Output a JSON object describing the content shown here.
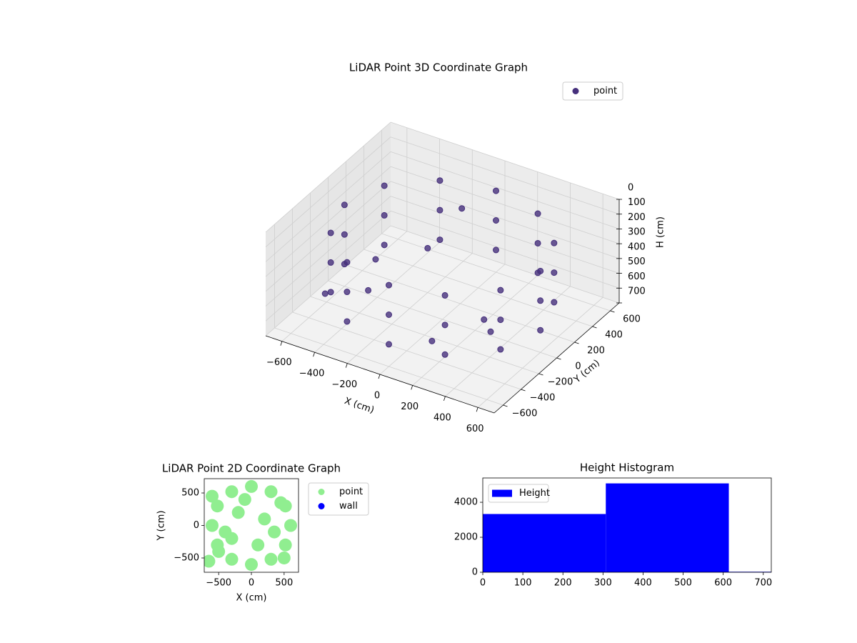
{
  "chart_data": [
    {
      "type": "scatter3d",
      "title": "LiDAR Point 3D Coordinate Graph",
      "xlabel": "X (cm)",
      "ylabel": "Y (cm)",
      "zlabel": "H (cm)",
      "xlim": [
        -700,
        700
      ],
      "ylim": [
        -700,
        700
      ],
      "zlim": [
        0,
        700
      ],
      "zaxis_inverted": true,
      "grid": true,
      "legend": "upper right",
      "xticks": [
        {
          "value": -600,
          "label": "−600"
        },
        {
          "value": -400,
          "label": "−400"
        },
        {
          "value": -200,
          "label": "−200"
        },
        0,
        200,
        400,
        600
      ],
      "yticks": [
        {
          "value": -600,
          "label": "−600"
        },
        {
          "value": -400,
          "label": "−400"
        },
        {
          "value": -200,
          "label": "−200"
        },
        0,
        200,
        400,
        600
      ],
      "zticks": [
        0,
        100,
        200,
        300,
        400,
        500,
        600,
        700
      ],
      "series": [
        {
          "name": "point",
          "color": "#46307c",
          "x": [
            -300,
            -300,
            -300,
            0,
            0,
            0,
            300,
            300,
            300,
            520,
            520,
            520,
            600,
            600,
            600,
            520,
            520,
            520,
            300,
            300,
            300,
            0,
            0,
            0,
            -300,
            -300,
            -300,
            -520,
            -520,
            -520,
            -600,
            -600,
            -600,
            -520,
            -520,
            -520,
            -400,
            -200,
            100,
            -500,
            200,
            -300,
            -100,
            350
          ],
          "y": [
            -520,
            -520,
            -520,
            -600,
            -600,
            -600,
            -520,
            -520,
            -520,
            -300,
            -300,
            -300,
            0,
            0,
            0,
            300,
            300,
            300,
            520,
            520,
            520,
            600,
            600,
            600,
            520,
            520,
            520,
            300,
            300,
            300,
            0,
            0,
            0,
            -300,
            -300,
            -300,
            -100,
            200,
            -300,
            -400,
            100,
            -200,
            400,
            -100
          ],
          "z": [
            150,
            350,
            550,
            150,
            350,
            550,
            150,
            350,
            550,
            150,
            350,
            550,
            150,
            350,
            550,
            150,
            350,
            550,
            150,
            350,
            550,
            150,
            350,
            550,
            150,
            350,
            550,
            150,
            350,
            550,
            150,
            350,
            550,
            150,
            350,
            550,
            600,
            400,
            650,
            500,
            680,
            300,
            200,
            600
          ]
        }
      ]
    },
    {
      "type": "scatter",
      "title": "LiDAR Point 2D Coordinate Graph",
      "xlabel": "X (cm)",
      "ylabel": "Y (cm)",
      "xlim": [
        -720,
        720
      ],
      "ylim": [
        -720,
        720
      ],
      "legend": "outside upper left",
      "xticks": [
        {
          "value": -500,
          "label": "−500"
        },
        0,
        500
      ],
      "yticks": [
        {
          "value": -500,
          "label": "−500"
        },
        0,
        500
      ],
      "series": [
        {
          "name": "point",
          "color": "#90ee90",
          "x": [
            -600,
            -520,
            -300,
            0,
            300,
            520,
            600,
            520,
            300,
            0,
            -300,
            -520,
            -400,
            -200,
            100,
            -500,
            200,
            -300,
            -100,
            350,
            450,
            500,
            -650,
            -600
          ],
          "y": [
            0,
            -300,
            -520,
            -600,
            -520,
            -300,
            0,
            300,
            520,
            600,
            520,
            300,
            -100,
            200,
            -300,
            -400,
            100,
            -200,
            400,
            -100,
            350,
            -500,
            -550,
            450
          ]
        },
        {
          "name": "wall",
          "color": "#0000ff",
          "x": [],
          "y": []
        }
      ]
    },
    {
      "type": "histogram",
      "title": "Height Histogram",
      "legend": "upper left",
      "bins": [
        0,
        307,
        614,
        720
      ],
      "series": [
        {
          "name": "Height",
          "color": "#0000ff",
          "values": [
            3330,
            5080,
            30
          ]
        }
      ],
      "xlim": [
        0,
        720
      ],
      "ylim": [
        0,
        5390
      ],
      "xticks": [
        0,
        100,
        200,
        300,
        400,
        500,
        600,
        700
      ],
      "yticks": [
        0,
        2000,
        4000
      ]
    }
  ]
}
